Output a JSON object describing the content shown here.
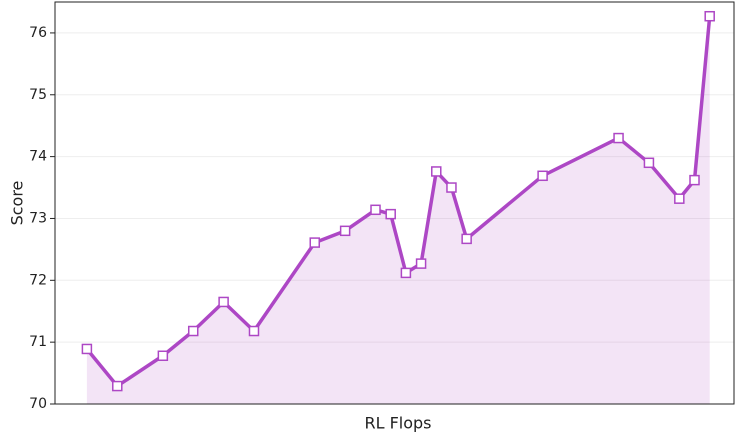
{
  "chart_data": {
    "type": "line",
    "xlabel": "RL Flops",
    "ylabel": "Score",
    "x": [
      0,
      2,
      5,
      7,
      9,
      11,
      15,
      17,
      19,
      20,
      21,
      22,
      23,
      24,
      25,
      30,
      35,
      37,
      39,
      40,
      41
    ],
    "series": [
      {
        "name": null,
        "color": "#ad47c5",
        "values": [
          70.89,
          70.29,
          70.78,
          71.18,
          71.65,
          71.18,
          72.61,
          72.8,
          73.14,
          73.07,
          72.12,
          72.27,
          73.76,
          73.5,
          72.67,
          73.69,
          74.3,
          73.9,
          73.32,
          73.62,
          76.27
        ]
      }
    ],
    "xlim": [
      -2.1,
      42.6
    ],
    "ylim": [
      70,
      76.5
    ],
    "yticks": [
      70,
      71,
      72,
      73,
      74,
      75,
      76
    ],
    "grid": true
  }
}
